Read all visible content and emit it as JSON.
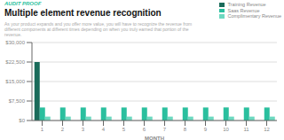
{
  "chart_data": {
    "type": "bar",
    "title": "Multiple element revenue recognition",
    "subtitle": "As your product expands and you offer more value, you will have to recognize the revenue from\ndifferent components at different times depending on when you truly earned that portion of the\nrevenue.",
    "annotations": [
      "AUDIT PROOF"
    ],
    "xlabel": "MONTH",
    "categories": [
      1,
      2,
      3,
      4,
      5,
      6,
      7,
      8,
      9,
      10,
      11,
      12
    ],
    "series": [
      {
        "name": "Training Revenue",
        "color": "#1a6b5a",
        "values": [
          22500,
          0,
          0,
          0,
          0,
          0,
          0,
          0,
          0,
          0,
          0,
          0
        ]
      },
      {
        "name": "Saas Revenue",
        "color": "#2abf9e",
        "values": [
          5000,
          5000,
          5000,
          5000,
          5000,
          5000,
          5000,
          5000,
          5000,
          5000,
          5000,
          5000
        ]
      },
      {
        "name": "Complimentary Revenue",
        "color": "#6dd9c0",
        "values": [
          1500,
          1500,
          1500,
          1500,
          1500,
          1500,
          1500,
          1500,
          1500,
          1500,
          1500,
          1500
        ]
      }
    ],
    "ylim": [
      0,
      30000
    ],
    "yticks": [
      {
        "value": 0,
        "label": "$0"
      },
      {
        "value": 7500,
        "label": "$7,500"
      },
      {
        "value": 15000,
        "label": "$15,000"
      },
      {
        "value": 22500,
        "label": "$22,500"
      },
      {
        "value": 30000,
        "label": "$30,000"
      }
    ],
    "grid": true,
    "legend": "upper right"
  }
}
